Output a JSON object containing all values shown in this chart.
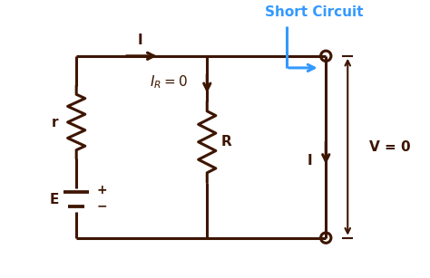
{
  "bg_color": "#ffffff",
  "circuit_color": "#3d1500",
  "blue_color": "#3399ff",
  "line_width": 2.2,
  "title": "Short Circuit",
  "title_fontsize": 11,
  "label_fontsize": 11,
  "figsize": [
    4.74,
    3.07
  ],
  "dpi": 100,
  "xlim": [
    0,
    10
  ],
  "ylim": [
    0,
    7
  ]
}
